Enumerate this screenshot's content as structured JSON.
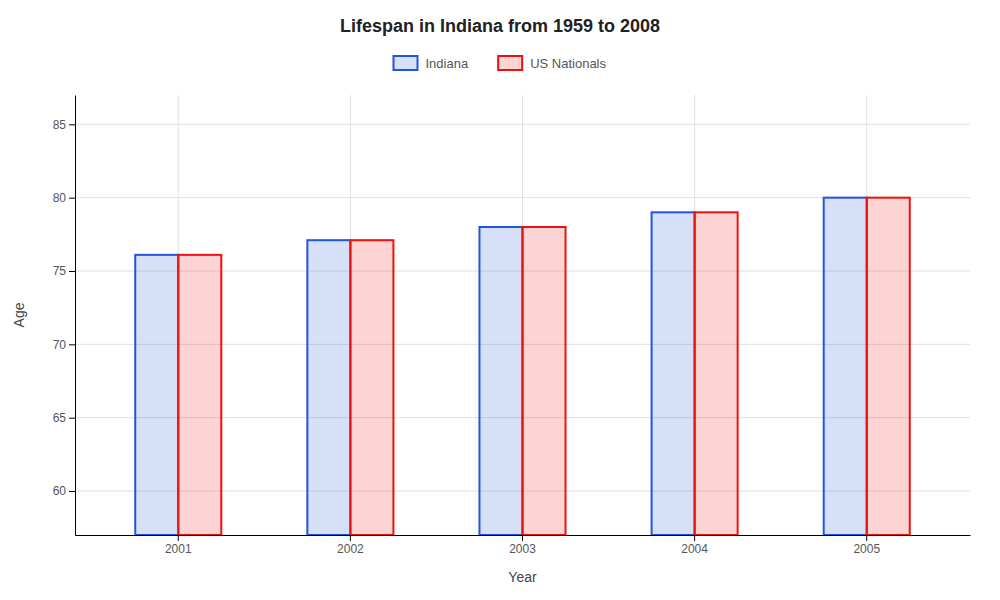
{
  "chart_data": {
    "type": "bar",
    "title": "Lifespan in Indiana from 1959 to 2008",
    "xlabel": "Year",
    "ylabel": "Age",
    "categories": [
      "2001",
      "2002",
      "2003",
      "2004",
      "2005"
    ],
    "series": [
      {
        "name": "Indiana",
        "color": "#2255dd",
        "values": [
          76.1,
          77.1,
          78.0,
          79.0,
          80.0
        ]
      },
      {
        "name": "US Nationals",
        "color": "#ee1111",
        "values": [
          76.1,
          77.1,
          78.0,
          79.0,
          80.0
        ]
      }
    ],
    "ylim": [
      57,
      87
    ],
    "yticks": [
      60,
      65,
      70,
      75,
      80,
      85
    ],
    "grid": true,
    "legend": "top"
  }
}
